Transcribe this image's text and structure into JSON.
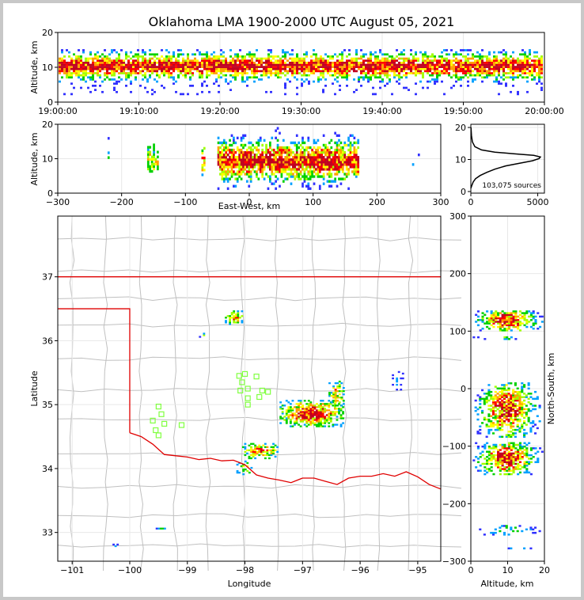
{
  "title": "Oklahoma LMA 1900-2000 UTC August 05, 2021",
  "colors": {
    "state_border": "#e00000",
    "county_lines": "#c0c0c0",
    "stations": "#80ff40",
    "density": [
      "#3030ff",
      "#00a0ff",
      "#00d000",
      "#a0ff00",
      "#ffff00",
      "#ffa000",
      "#ff0000",
      "#c00020",
      "#ffffff"
    ]
  },
  "chart_data": [
    {
      "panel": "time-altitude",
      "type": "heatmap",
      "ylabel": "Altitude, km",
      "xlabel": "",
      "ylim": [
        0,
        20
      ],
      "yticks": [
        "0",
        "10",
        "20"
      ],
      "xticks": [
        "19:00:00",
        "19:10:00",
        "19:20:00",
        "19:30:00",
        "19:40:00",
        "19:50:00",
        "20:00:00"
      ],
      "x_range": [
        "19:00:00",
        "20:00:00"
      ],
      "core_altitude_km": 10,
      "band_km": [
        2,
        15
      ]
    },
    {
      "panel": "east-west-altitude",
      "type": "heatmap",
      "xlabel": "East-West, km",
      "ylabel": "Altitude, km",
      "xlim": [
        -300,
        300
      ],
      "ylim": [
        0,
        20
      ],
      "xticks": [
        "−300",
        "−200",
        "−100",
        "0",
        "100",
        "200",
        "300"
      ],
      "yticks": [
        "0",
        "10",
        "20"
      ],
      "clusters": [
        {
          "x": [
            -225,
            -220
          ],
          "alt": [
            10,
            19
          ],
          "density": 0.3
        },
        {
          "x": [
            -160,
            -145
          ],
          "alt": [
            6,
            14
          ],
          "density": 0.6
        },
        {
          "x": [
            -75,
            -70
          ],
          "alt": [
            5,
            13
          ],
          "density": 0.7
        },
        {
          "x": [
            -50,
            170
          ],
          "alt": [
            1,
            19
          ],
          "density": 1.0
        },
        {
          "x": [
            255,
            265
          ],
          "alt": [
            8,
            11
          ],
          "density": 0.2
        }
      ]
    },
    {
      "panel": "altitude-histogram",
      "type": "line",
      "annotation": "103,075 sources",
      "xlim": [
        0,
        5500
      ],
      "ylim": [
        -0.5,
        21
      ],
      "xticks": [
        "0",
        "5000"
      ],
      "yticks": [
        "0",
        "10",
        "20"
      ],
      "x": [
        0,
        80,
        180,
        350,
        700,
        1200,
        1800,
        2600,
        3600,
        4600,
        5100,
        5200,
        4700,
        3200,
        1800,
        800,
        300,
        120,
        50,
        10
      ],
      "y": [
        1,
        2,
        3,
        4,
        5,
        6,
        7,
        8,
        8.8,
        9.6,
        10.3,
        10.8,
        11.3,
        11.8,
        12.3,
        13,
        14,
        15.5,
        17.5,
        20
      ]
    },
    {
      "panel": "plan-view-map",
      "type": "heatmap",
      "xlabel": "Longitude",
      "ylabel": "Latitude",
      "xlim": [
        -101.25,
        -94.6
      ],
      "ylim": [
        32.55,
        37.95
      ],
      "xticks": [
        "−101",
        "−100",
        "−99",
        "−98",
        "−97",
        "−96",
        "−95"
      ],
      "yticks": [
        "33",
        "34",
        "35",
        "36",
        "37"
      ],
      "stations": [
        [
          -99.6,
          34.75
        ],
        [
          -99.5,
          34.97
        ],
        [
          -99.45,
          34.85
        ],
        [
          -99.55,
          34.6
        ],
        [
          -99.5,
          34.52
        ],
        [
          -99.4,
          34.7
        ],
        [
          -99.1,
          34.68
        ],
        [
          -98.1,
          35.45
        ],
        [
          -98.0,
          35.48
        ],
        [
          -97.8,
          35.44
        ],
        [
          -98.05,
          35.35
        ],
        [
          -97.95,
          35.25
        ],
        [
          -98.08,
          35.22
        ],
        [
          -97.7,
          35.22
        ],
        [
          -97.75,
          35.12
        ],
        [
          -97.95,
          35.1
        ],
        [
          -97.95,
          35.0
        ],
        [
          -97.6,
          35.2
        ]
      ],
      "clusters": [
        {
          "lon": [
            -98.35,
            -98.05
          ],
          "lat": [
            36.25,
            36.45
          ],
          "density": 0.8
        },
        {
          "lon": [
            -98.8,
            -98.7
          ],
          "lat": [
            36.05,
            36.1
          ],
          "density": 0.4
        },
        {
          "lon": [
            -97.4,
            -96.3
          ],
          "lat": [
            34.65,
            35.05
          ],
          "density": 1.0
        },
        {
          "lon": [
            -96.55,
            -96.3
          ],
          "lat": [
            34.95,
            35.35
          ],
          "density": 0.7
        },
        {
          "lon": [
            -98.05,
            -97.45
          ],
          "lat": [
            34.15,
            34.38
          ],
          "density": 0.9
        },
        {
          "lon": [
            -98.15,
            -97.9
          ],
          "lat": [
            33.9,
            34.1
          ],
          "density": 0.6
        },
        {
          "lon": [
            -95.45,
            -95.25
          ],
          "lat": [
            35.2,
            35.5
          ],
          "density": 0.2
        },
        {
          "lon": [
            -99.55,
            -99.4
          ],
          "lat": [
            33.0,
            33.1
          ],
          "density": 0.3
        },
        {
          "lon": [
            -100.3,
            -100.2
          ],
          "lat": [
            32.7,
            32.8
          ],
          "density": 0.2
        }
      ]
    },
    {
      "panel": "altitude-north-south",
      "type": "heatmap",
      "xlabel": "Altitude, km",
      "ylabel": "North-South, km",
      "xlim": [
        0,
        20
      ],
      "ylim": [
        -300,
        300
      ],
      "xticks": [
        "0",
        "10",
        "20"
      ],
      "yticks": [
        "−300",
        "−200",
        "−100",
        "0",
        "100",
        "200",
        "300"
      ],
      "clusters": [
        {
          "alt": [
            0.5,
            19.5
          ],
          "ns": [
            100,
            135
          ],
          "density": 1.0
        },
        {
          "alt": [
            0.5,
            14
          ],
          "ns": [
            85,
            90
          ],
          "density": 0.3
        },
        {
          "alt": [
            1,
            19
          ],
          "ns": [
            -85,
            10
          ],
          "density": 0.9
        },
        {
          "alt": [
            0.5,
            19.5
          ],
          "ns": [
            -150,
            -95
          ],
          "density": 1.0
        },
        {
          "alt": [
            1,
            20
          ],
          "ns": [
            -255,
            -240
          ],
          "density": 0.4
        },
        {
          "alt": [
            10,
            18
          ],
          "ns": [
            -282,
            -275
          ],
          "density": 0.2
        }
      ]
    }
  ]
}
